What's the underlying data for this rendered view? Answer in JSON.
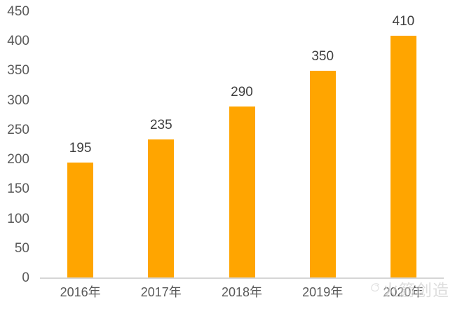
{
  "chart_data": {
    "type": "bar",
    "title": "",
    "xlabel": "",
    "ylabel": "",
    "categories": [
      "2016年",
      "2017年",
      "2018年",
      "2019年",
      "2020年"
    ],
    "values": [
      195,
      235,
      290,
      350,
      410
    ],
    "data_labels": [
      "195",
      "235",
      "290",
      "350",
      "410"
    ],
    "ylim": [
      0,
      450
    ],
    "yticks": [
      0,
      50,
      100,
      150,
      200,
      250,
      300,
      350,
      400,
      450
    ],
    "grid": false,
    "legend": "none",
    "data_labels_shown": true,
    "colors": {
      "bar": "#FFA500",
      "value_label": "#3f3f3f",
      "tick_label": "#595959",
      "axis_line": "#D6D6D6",
      "background": "#FFFFFF"
    }
  },
  "watermark": {
    "text": "火箭创造",
    "icon": "bird-logo-icon",
    "color": "#bdbdbd"
  }
}
